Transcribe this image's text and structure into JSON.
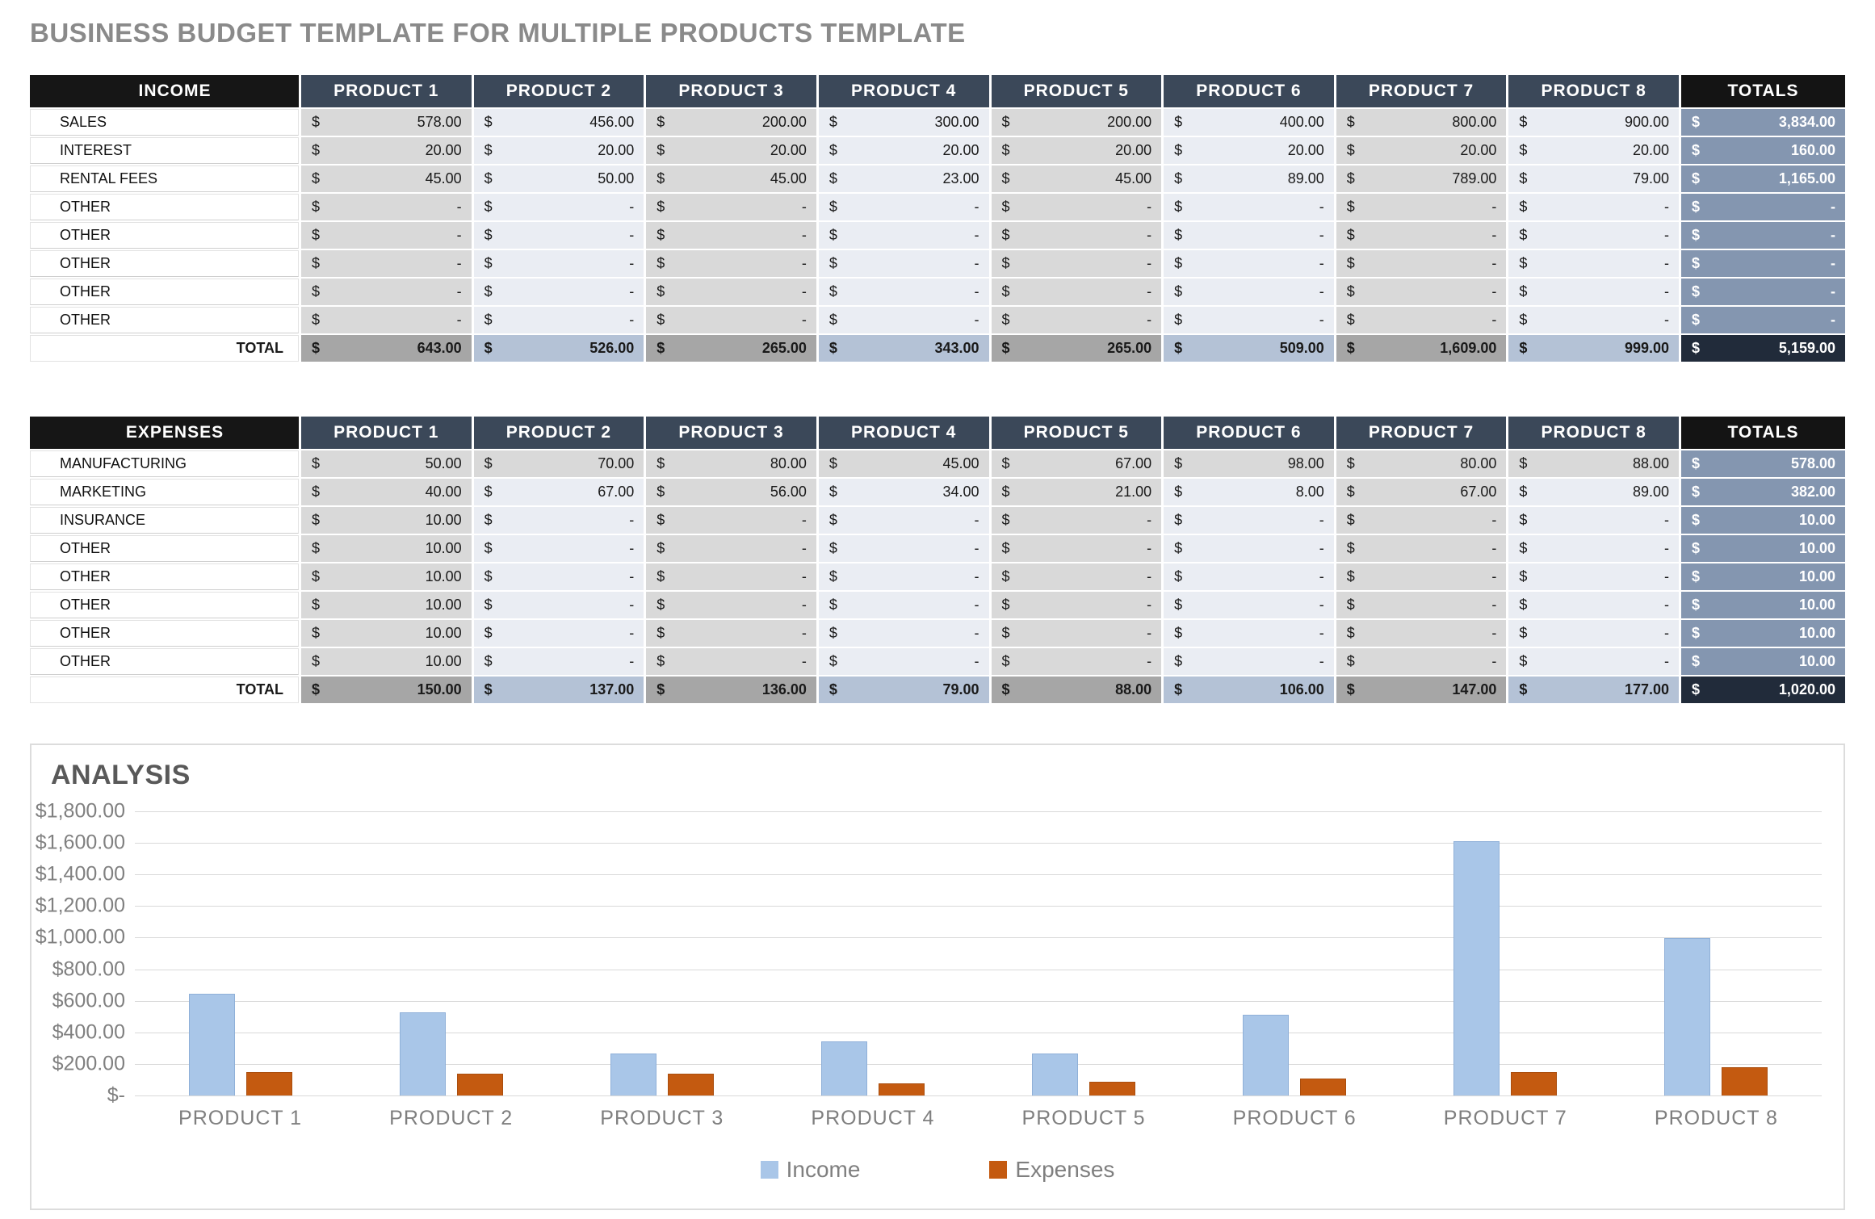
{
  "page_title": "BUSINESS BUDGET TEMPLATE FOR MULTIPLE PRODUCTS TEMPLATE",
  "currency_symbol": "$",
  "income_table": {
    "title": "INCOME",
    "totals_label": "TOTALS",
    "columns": [
      "PRODUCT 1",
      "PRODUCT 2",
      "PRODUCT 3",
      "PRODUCT 4",
      "PRODUCT 5",
      "PRODUCT 6",
      "PRODUCT 7",
      "PRODUCT 8"
    ],
    "rows": [
      {
        "label": "SALES",
        "values": [
          "578.00",
          "456.00",
          "200.00",
          "300.00",
          "200.00",
          "400.00",
          "800.00",
          "900.00"
        ],
        "total": "3,834.00"
      },
      {
        "label": "INTEREST",
        "values": [
          "20.00",
          "20.00",
          "20.00",
          "20.00",
          "20.00",
          "20.00",
          "20.00",
          "20.00"
        ],
        "total": "160.00"
      },
      {
        "label": "RENTAL FEES",
        "values": [
          "45.00",
          "50.00",
          "45.00",
          "23.00",
          "45.00",
          "89.00",
          "789.00",
          "79.00"
        ],
        "total": "1,165.00"
      },
      {
        "label": "OTHER",
        "values": [
          "-",
          "-",
          "-",
          "-",
          "-",
          "-",
          "-",
          "-"
        ],
        "total": "-"
      },
      {
        "label": "OTHER",
        "values": [
          "-",
          "-",
          "-",
          "-",
          "-",
          "-",
          "-",
          "-"
        ],
        "total": "-"
      },
      {
        "label": "OTHER",
        "values": [
          "-",
          "-",
          "-",
          "-",
          "-",
          "-",
          "-",
          "-"
        ],
        "total": "-"
      },
      {
        "label": "OTHER",
        "values": [
          "-",
          "-",
          "-",
          "-",
          "-",
          "-",
          "-",
          "-"
        ],
        "total": "-"
      },
      {
        "label": "OTHER",
        "values": [
          "-",
          "-",
          "-",
          "-",
          "-",
          "-",
          "-",
          "-"
        ],
        "total": "-"
      }
    ],
    "total_row": {
      "label": "TOTAL",
      "values": [
        "643.00",
        "526.00",
        "265.00",
        "343.00",
        "265.00",
        "509.00",
        "1,609.00",
        "999.00"
      ],
      "total": "5,159.00"
    }
  },
  "expenses_table": {
    "title": "EXPENSES",
    "totals_label": "TOTALS",
    "columns": [
      "PRODUCT 1",
      "PRODUCT 2",
      "PRODUCT 3",
      "PRODUCT 4",
      "PRODUCT 5",
      "PRODUCT 6",
      "PRODUCT 7",
      "PRODUCT 8"
    ],
    "rows": [
      {
        "label": "MANUFACTURING",
        "values": [
          "50.00",
          "70.00",
          "80.00",
          "45.00",
          "67.00",
          "98.00",
          "80.00",
          "88.00"
        ],
        "total": "578.00",
        "shade": "all-gray"
      },
      {
        "label": "MARKETING",
        "values": [
          "40.00",
          "67.00",
          "56.00",
          "34.00",
          "21.00",
          "8.00",
          "67.00",
          "89.00"
        ],
        "total": "382.00"
      },
      {
        "label": "INSURANCE",
        "values": [
          "10.00",
          "-",
          "-",
          "-",
          "-",
          "-",
          "-",
          "-"
        ],
        "total": "10.00"
      },
      {
        "label": "OTHER",
        "values": [
          "10.00",
          "-",
          "-",
          "-",
          "-",
          "-",
          "-",
          "-"
        ],
        "total": "10.00"
      },
      {
        "label": "OTHER",
        "values": [
          "10.00",
          "-",
          "-",
          "-",
          "-",
          "-",
          "-",
          "-"
        ],
        "total": "10.00"
      },
      {
        "label": "OTHER",
        "values": [
          "10.00",
          "-",
          "-",
          "-",
          "-",
          "-",
          "-",
          "-"
        ],
        "total": "10.00"
      },
      {
        "label": "OTHER",
        "values": [
          "10.00",
          "-",
          "-",
          "-",
          "-",
          "-",
          "-",
          "-"
        ],
        "total": "10.00"
      },
      {
        "label": "OTHER",
        "values": [
          "10.00",
          "-",
          "-",
          "-",
          "-",
          "-",
          "-",
          "-"
        ],
        "total": "10.00"
      }
    ],
    "total_row": {
      "label": "TOTAL",
      "values": [
        "150.00",
        "137.00",
        "136.00",
        "79.00",
        "88.00",
        "106.00",
        "147.00",
        "177.00"
      ],
      "total": "1,020.00"
    }
  },
  "chart_data": {
    "type": "bar",
    "title": "ANALYSIS",
    "categories": [
      "PRODUCT 1",
      "PRODUCT 2",
      "PRODUCT 3",
      "PRODUCT 4",
      "PRODUCT 5",
      "PRODUCT 6",
      "PRODUCT 7",
      "PRODUCT 8"
    ],
    "series": [
      {
        "name": "Income",
        "color": "#a9c6e8",
        "values": [
          643,
          526,
          265,
          343,
          265,
          509,
          1609,
          999
        ]
      },
      {
        "name": "Expenses",
        "color": "#c45a10",
        "values": [
          150,
          137,
          136,
          79,
          88,
          106,
          147,
          177
        ]
      }
    ],
    "ylim": [
      0,
      1800
    ],
    "ytick_step": 200,
    "ytick_labels": [
      "$1,800.00",
      "$1,600.00",
      "$1,400.00",
      "$1,200.00",
      "$1,000.00",
      "$800.00",
      "$600.00",
      "$400.00",
      "$200.00",
      "$-"
    ],
    "grid": true,
    "legend_position": "bottom",
    "xlabel": "",
    "ylabel": ""
  },
  "colors": {
    "table_header_dark": "#161616",
    "table_header_slate": "#3b4859",
    "cell_gray": "#d9d9d9",
    "cell_light": "#eaedf3",
    "totals_column": "#8496b0",
    "total_row_gray": "#a6a6a6",
    "total_row_blue": "#b4c2d6",
    "grand_total": "#212b3a",
    "income_bar": "#a9c6e8",
    "expenses_bar": "#c45a10"
  }
}
